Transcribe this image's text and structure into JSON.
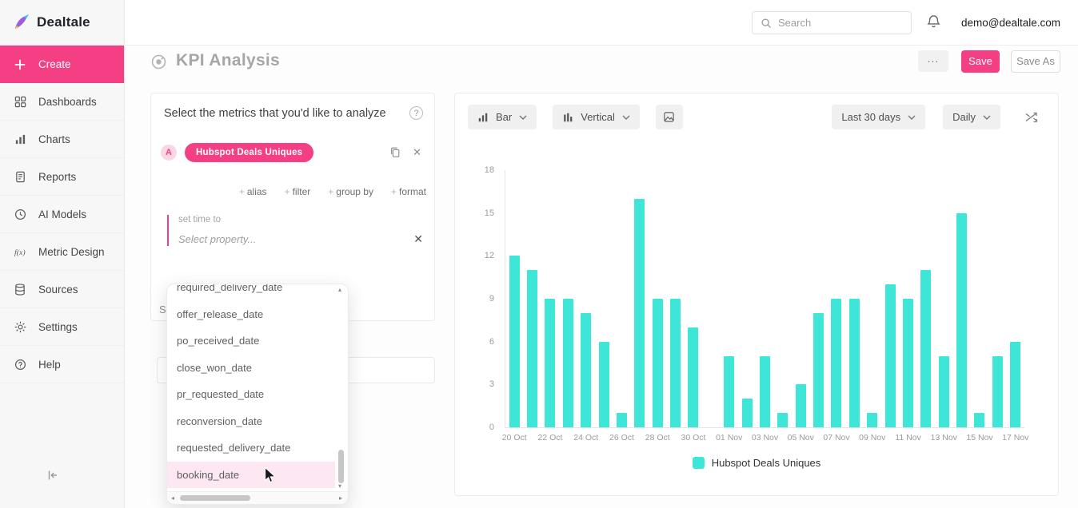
{
  "app": {
    "logo_text": "Dealtale",
    "search_placeholder": "Search",
    "user_email": "demo@dealtale.com"
  },
  "sidebar": {
    "items": [
      {
        "label": "Create",
        "icon": "plus",
        "active": true
      },
      {
        "label": "Dashboards",
        "icon": "grid",
        "active": false
      },
      {
        "label": "Charts",
        "icon": "bar-chart",
        "active": false
      },
      {
        "label": "Reports",
        "icon": "report",
        "active": false
      },
      {
        "label": "AI Models",
        "icon": "ai",
        "active": false
      },
      {
        "label": "Metric Design",
        "icon": "fx",
        "active": false
      },
      {
        "label": "Sources",
        "icon": "database",
        "active": false
      },
      {
        "label": "Settings",
        "icon": "gear",
        "active": false
      },
      {
        "label": "Help",
        "icon": "help",
        "active": false
      }
    ]
  },
  "page": {
    "title": "KPI Analysis",
    "more_label": "...",
    "save_label": "Save",
    "save_as_label": "Save As"
  },
  "metrics_panel": {
    "title": "Select the metrics that you'd like to analyze",
    "metric_letter": "A",
    "metric_name": "Hubspot Deals Uniques",
    "actions": [
      "alias",
      "filter",
      "group by",
      "format"
    ],
    "set_time_label": "set time to",
    "property_placeholder": "Select property...",
    "background_text": "Se",
    "dropdown_options": [
      "required_delivery_date",
      "offer_release_date",
      "po_received_date",
      "close_won_date",
      "pr_requested_date",
      "reconversion_date",
      "requested_delivery_date",
      "booking_date"
    ],
    "highlighted_option": "booking_date"
  },
  "chart_panel": {
    "chart_type_label": "Bar",
    "orientation_label": "Vertical",
    "range_label": "Last 30 days",
    "granularity_label": "Daily"
  },
  "chart_data": {
    "type": "bar",
    "series": [
      {
        "name": "Hubspot Deals Uniques",
        "values": [
          12,
          11,
          9,
          9,
          8,
          6,
          1,
          16,
          9,
          9,
          7,
          0,
          5,
          2,
          5,
          1,
          3,
          8,
          9,
          9,
          1,
          10,
          9,
          11,
          5,
          15,
          1,
          5,
          6
        ]
      }
    ],
    "x_tick_labels": [
      "20 Oct",
      "22 Oct",
      "24 Oct",
      "26 Oct",
      "28 Oct",
      "30 Oct",
      "01 Nov",
      "03 Nov",
      "05 Nov",
      "07 Nov",
      "09 Nov",
      "11 Nov",
      "13 Nov",
      "15 Nov",
      "17 Nov"
    ],
    "ylim": [
      0,
      18
    ],
    "yticks": [
      0,
      3,
      6,
      9,
      12,
      15,
      18
    ],
    "bar_color": "#3ee6d8",
    "legend": "Hubspot Deals Uniques",
    "legend_position": "bottom",
    "grid": false
  },
  "colors": {
    "accent": "#f43f85",
    "bar": "#3ee6d8"
  }
}
